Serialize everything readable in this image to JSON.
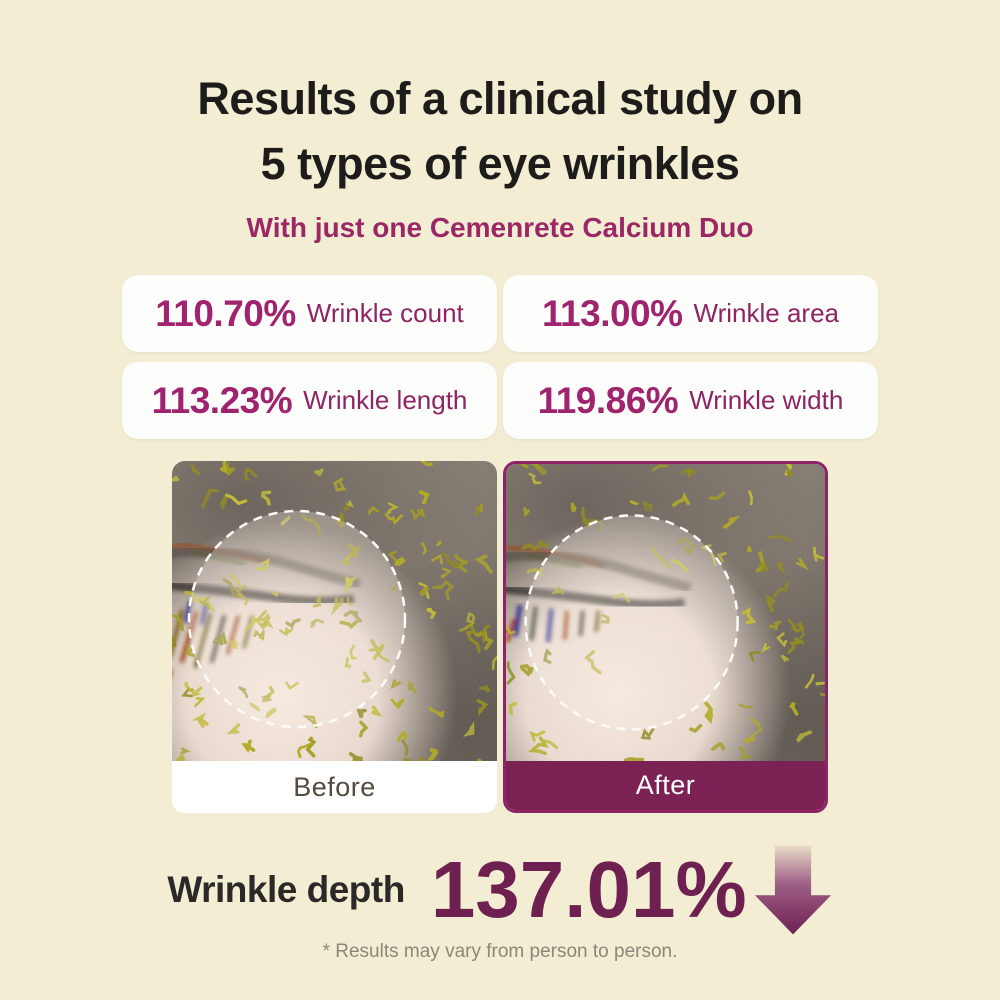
{
  "page": {
    "title_line1": "Results of a clinical study on",
    "title_line2": "5 types of eye wrinkles",
    "subtitle": "With just one Cemenrete Calcium Duo"
  },
  "stats": [
    {
      "value": "110.70%",
      "label": "Wrinkle count"
    },
    {
      "value": "113.00%",
      "label": "Wrinkle area"
    },
    {
      "value": "113.23%",
      "label": "Wrinkle length"
    },
    {
      "value": "119.86%",
      "label": "Wrinkle width"
    }
  ],
  "comparison": {
    "before_label": "Before",
    "after_label": "After"
  },
  "depth": {
    "label": "Wrinkle depth",
    "value": "137.01%",
    "arrow_icon": "down-arrow"
  },
  "footnote": "* Results may vary from person to person.",
  "colors": {
    "background": "#f2edd3",
    "title_text": "#1e1c1b",
    "accent_magenta": "#a02370",
    "subtitle_magenta": "#9c2766",
    "after_bar": "#7c2154",
    "after_border": "#8e2466",
    "depth_value": "#6e2151",
    "before_label_text": "#554a40",
    "footnote_text": "#8d8779",
    "card_bg": "#fdfdfb"
  }
}
